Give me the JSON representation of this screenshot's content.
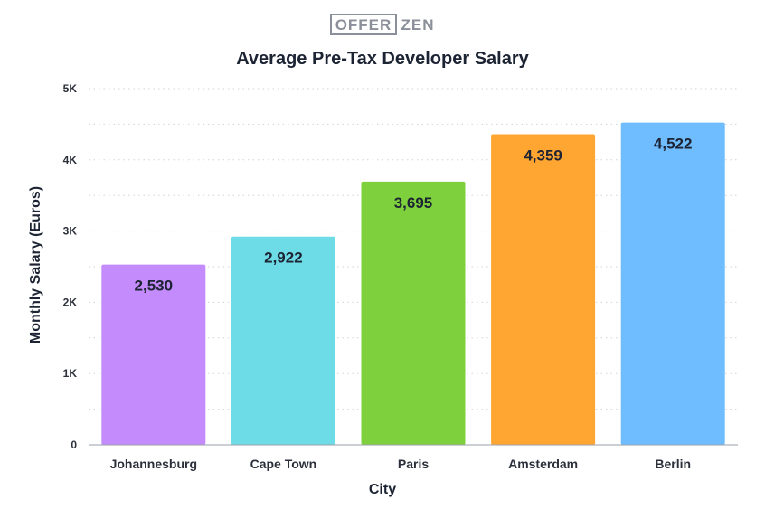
{
  "logo": {
    "left": "OFFER",
    "right": "ZEN"
  },
  "chart_data": {
    "type": "bar",
    "title": "Average Pre-Tax Developer Salary",
    "xlabel": "City",
    "ylabel": "Monthly Salary (Euros)",
    "categories": [
      "Johannesburg",
      "Cape Town",
      "Paris",
      "Amsterdam",
      "Berlin"
    ],
    "values": [
      2530,
      2922,
      3695,
      4359,
      4522
    ],
    "data_labels": [
      "2,530",
      "2,922",
      "3,695",
      "4,359",
      "4,522"
    ],
    "colors": [
      "#c38bfb",
      "#6edce6",
      "#7ed13c",
      "#ffa532",
      "#6fbcff"
    ],
    "ylim": [
      0,
      5000
    ],
    "yticks": [
      0,
      1000,
      2000,
      3000,
      4000,
      5000
    ],
    "ytick_labels": [
      "0",
      "1K",
      "2K",
      "3K",
      "4K",
      "5K"
    ],
    "grid": true
  }
}
